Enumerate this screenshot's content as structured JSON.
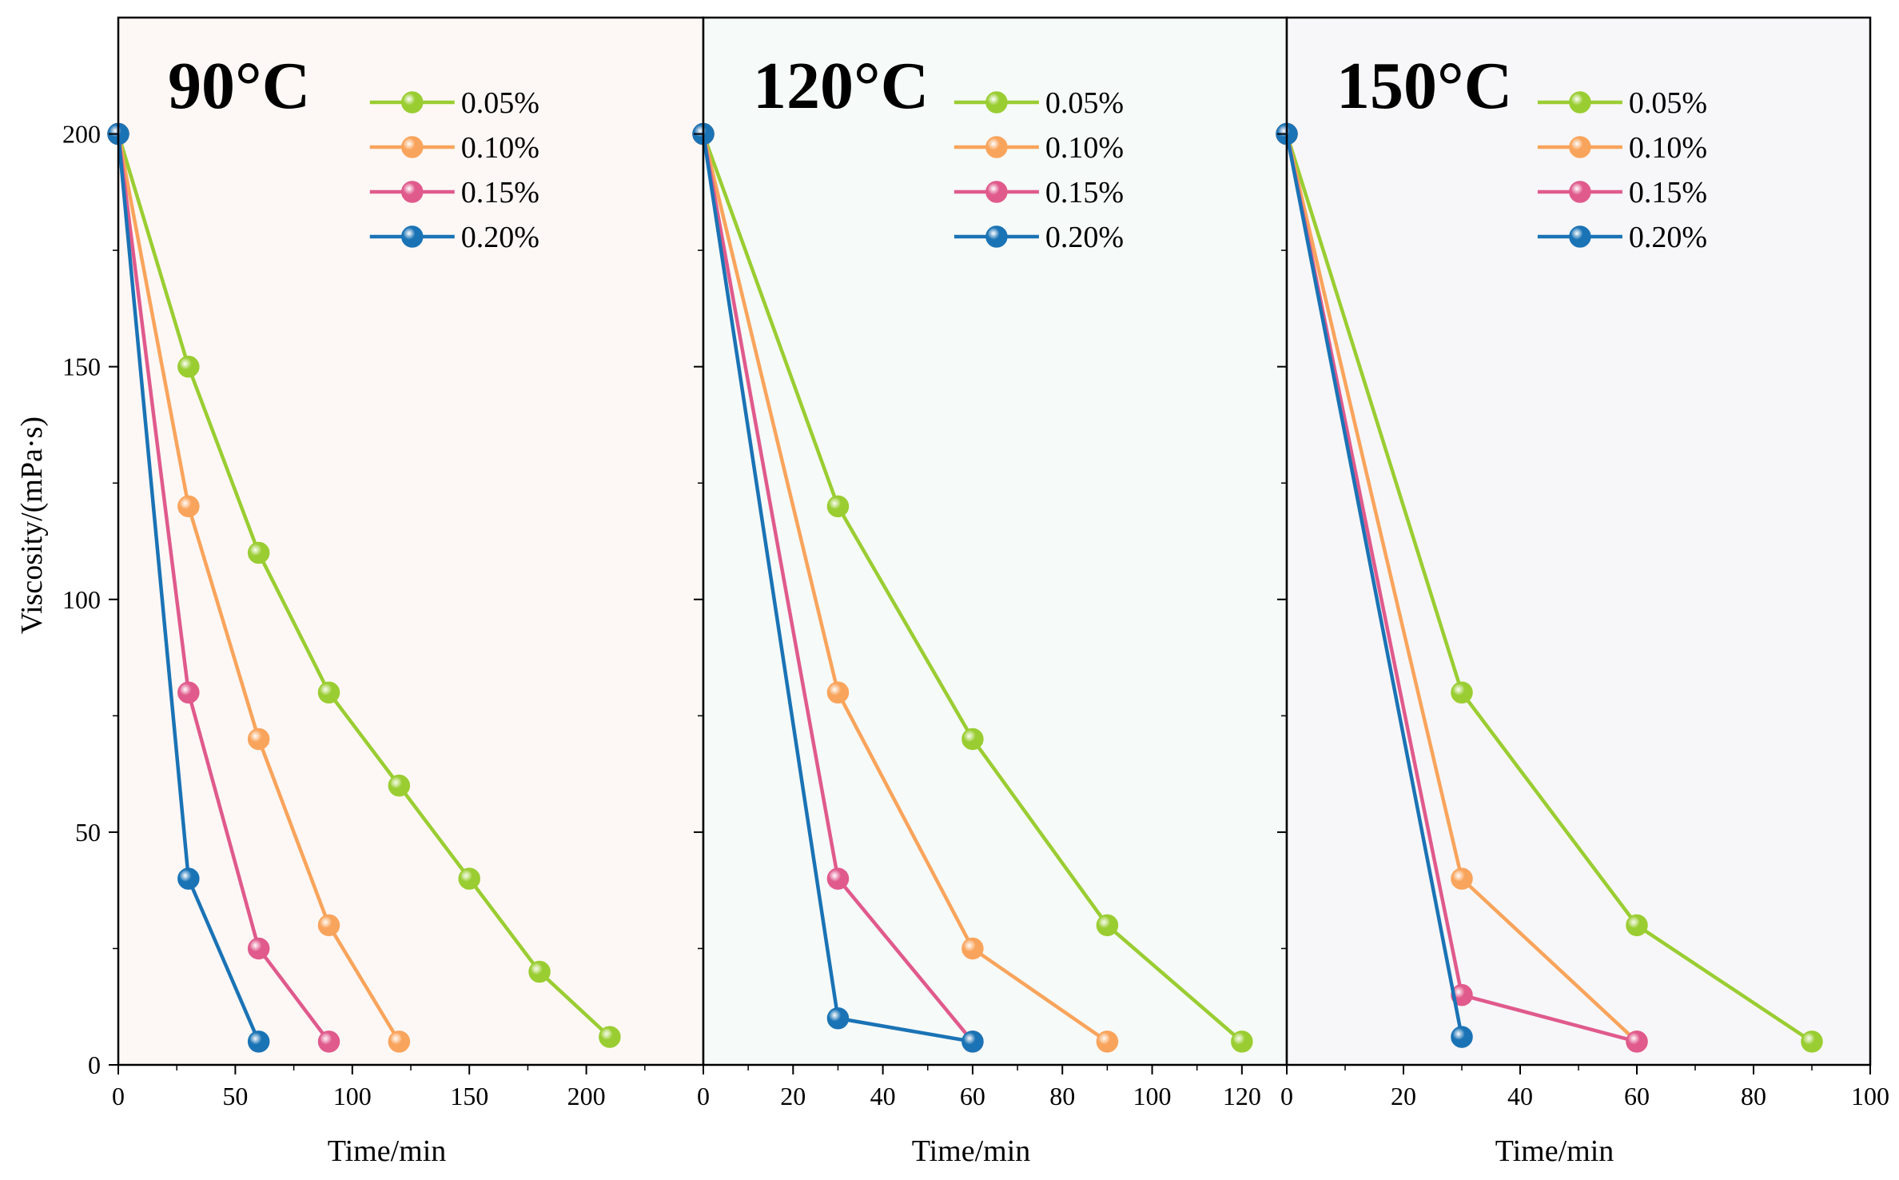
{
  "chart_data": [
    {
      "type": "line",
      "title": "90°C",
      "xlabel": "Time/min",
      "ylabel": "Viscosity/(mPa·s)",
      "xlim": [
        0,
        250
      ],
      "ylim": [
        0,
        225
      ],
      "xticks": [
        0,
        50,
        100,
        150,
        200
      ],
      "yticks": [
        0,
        50,
        100,
        150,
        200
      ],
      "background": "#fdf8f6",
      "series": [
        {
          "name": "0.05%",
          "color": "#9acd32",
          "x": [
            0,
            30,
            60,
            90,
            120,
            150,
            180,
            210
          ],
          "y": [
            200,
            150,
            110,
            80,
            60,
            40,
            20,
            6
          ]
        },
        {
          "name": "0.10%",
          "color": "#f9a45c",
          "x": [
            0,
            30,
            60,
            90,
            120
          ],
          "y": [
            200,
            120,
            70,
            30,
            5
          ]
        },
        {
          "name": "0.15%",
          "color": "#e05a8c",
          "x": [
            0,
            30,
            60,
            90
          ],
          "y": [
            200,
            80,
            25,
            5
          ]
        },
        {
          "name": "0.20%",
          "color": "#1a73b5",
          "x": [
            0,
            30,
            60
          ],
          "y": [
            200,
            40,
            5
          ]
        }
      ]
    },
    {
      "type": "line",
      "title": "120°C",
      "xlabel": "Time/min",
      "ylabel": "",
      "xlim": [
        0,
        130
      ],
      "ylim": [
        0,
        225
      ],
      "xticks": [
        0,
        20,
        40,
        60,
        80,
        100,
        120
      ],
      "yticks": [
        0,
        50,
        100,
        150,
        200
      ],
      "background": "#f6faf9",
      "series": [
        {
          "name": "0.05%",
          "color": "#9acd32",
          "x": [
            0,
            30,
            60,
            90,
            120
          ],
          "y": [
            200,
            120,
            70,
            30,
            5
          ]
        },
        {
          "name": "0.10%",
          "color": "#f9a45c",
          "x": [
            0,
            30,
            60,
            90
          ],
          "y": [
            200,
            80,
            25,
            5
          ]
        },
        {
          "name": "0.15%",
          "color": "#e05a8c",
          "x": [
            0,
            30,
            60
          ],
          "y": [
            200,
            40,
            5
          ]
        },
        {
          "name": "0.20%",
          "color": "#1a73b5",
          "x": [
            0,
            30,
            60
          ],
          "y": [
            200,
            10,
            5
          ]
        }
      ]
    },
    {
      "type": "line",
      "title": "150°C",
      "xlabel": "Time/min",
      "ylabel": "",
      "xlim": [
        0,
        100
      ],
      "ylim": [
        0,
        225
      ],
      "xticks": [
        0,
        20,
        40,
        60,
        80,
        100
      ],
      "yticks": [
        0,
        50,
        100,
        150,
        200
      ],
      "background": "#f7f7f9",
      "series": [
        {
          "name": "0.05%",
          "color": "#9acd32",
          "x": [
            0,
            30,
            60,
            90
          ],
          "y": [
            200,
            80,
            30,
            5
          ]
        },
        {
          "name": "0.10%",
          "color": "#f9a45c",
          "x": [
            0,
            30,
            60
          ],
          "y": [
            200,
            40,
            5
          ]
        },
        {
          "name": "0.15%",
          "color": "#e05a8c",
          "x": [
            0,
            30,
            60
          ],
          "y": [
            200,
            15,
            5
          ]
        },
        {
          "name": "0.20%",
          "color": "#1a73b5",
          "x": [
            0,
            30
          ],
          "y": [
            200,
            6
          ]
        }
      ]
    }
  ]
}
